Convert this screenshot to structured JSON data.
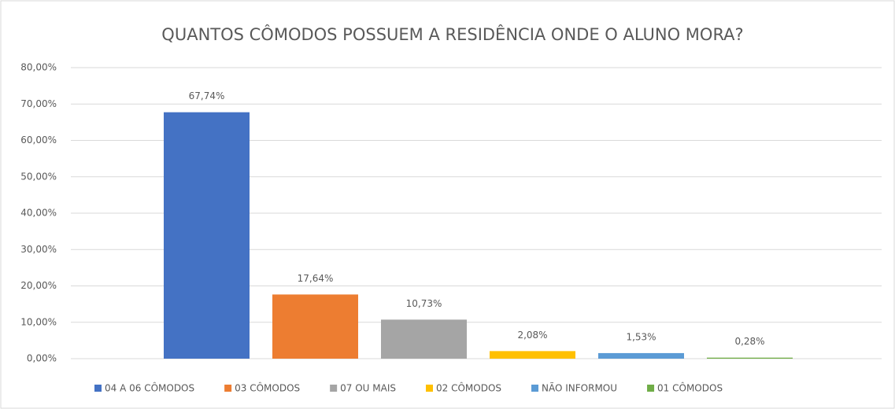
{
  "chart_data": {
    "type": "bar",
    "title": "QUANTOS CÔMODOS POSSUEM A RESIDÊNCIA ONDE O ALUNO MORA?",
    "series": [
      {
        "name": "04 A 06 CÔMODOS",
        "color": "#4472c4",
        "values": [
          67.74
        ],
        "value_labels": [
          "67,74%"
        ]
      },
      {
        "name": "03 CÔMODOS",
        "color": "#ed7d31",
        "values": [
          17.64
        ],
        "value_labels": [
          "17,64%"
        ]
      },
      {
        "name": "07 OU MAIS",
        "color": "#a5a5a5",
        "values": [
          10.73
        ],
        "value_labels": [
          "10,73%"
        ]
      },
      {
        "name": "02 CÔMODOS",
        "color": "#ffc000",
        "values": [
          2.08
        ],
        "value_labels": [
          "2,08%"
        ]
      },
      {
        "name": "NÃO INFORMOU",
        "color": "#5b9bd5",
        "values": [
          1.53
        ],
        "value_labels": [
          "1,53%"
        ]
      },
      {
        "name": "01 CÔMODOS",
        "color": "#70ad47",
        "values": [
          0.28
        ],
        "value_labels": [
          "0,28%"
        ]
      }
    ],
    "ylim": [
      0,
      80
    ],
    "yticks": [
      {
        "value": 0,
        "label": "0,00%"
      },
      {
        "value": 10,
        "label": "10,00%"
      },
      {
        "value": 20,
        "label": "20,00%"
      },
      {
        "value": 30,
        "label": "30,00%"
      },
      {
        "value": 40,
        "label": "40,00%"
      },
      {
        "value": 50,
        "label": "50,00%"
      },
      {
        "value": 60,
        "label": "60,00%"
      },
      {
        "value": 70,
        "label": "70,00%"
      },
      {
        "value": 80,
        "label": "80,00%"
      }
    ],
    "grid": true,
    "legend": "bottom"
  }
}
